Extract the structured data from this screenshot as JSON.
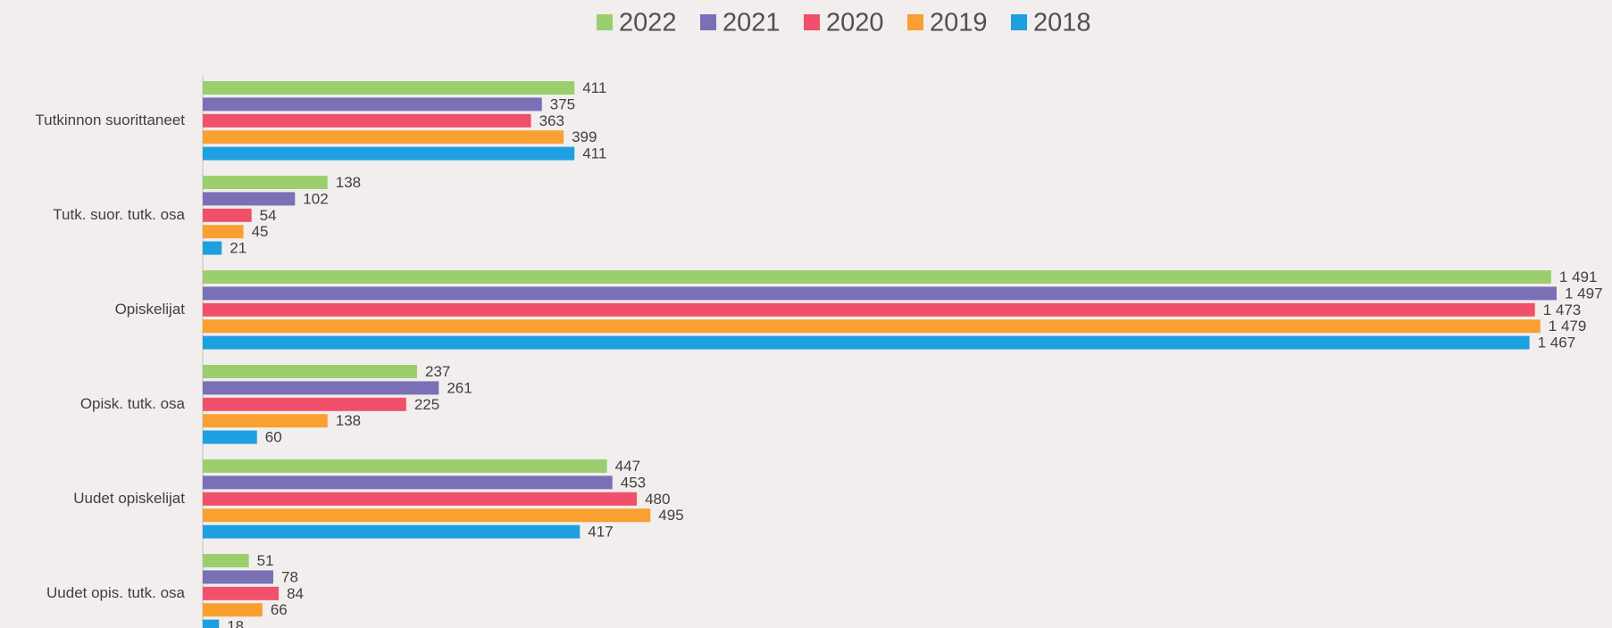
{
  "chart_data": {
    "type": "barh",
    "categories": [
      "Tutkinnon suorittaneet",
      "Tutk. suor. tutk. osa",
      "Opiskelijat",
      "Opisk. tutk. osa",
      "Uudet opiskelijat",
      "Uudet opis. tutk. osa"
    ],
    "series": [
      {
        "name": "2022",
        "color": "#9bcf6e",
        "values": [
          411,
          138,
          1491,
          237,
          447,
          51
        ],
        "value_labels": [
          "411",
          "138",
          "1 491",
          "237",
          "447",
          "51"
        ]
      },
      {
        "name": "2021",
        "color": "#7a70b5",
        "values": [
          375,
          102,
          1497,
          261,
          453,
          78
        ],
        "value_labels": [
          "375",
          "102",
          "1 497",
          "261",
          "453",
          "78"
        ]
      },
      {
        "name": "2020",
        "color": "#f0506a",
        "values": [
          363,
          54,
          1473,
          225,
          480,
          84
        ],
        "value_labels": [
          "363",
          "54",
          "1 473",
          "225",
          "480",
          "84"
        ]
      },
      {
        "name": "2019",
        "color": "#f9a030",
        "values": [
          399,
          45,
          1479,
          138,
          495,
          66
        ],
        "value_labels": [
          "399",
          "45",
          "1 479",
          "138",
          "495",
          "66"
        ]
      },
      {
        "name": "2018",
        "color": "#1e9fe0",
        "values": [
          411,
          21,
          1467,
          60,
          417,
          18
        ],
        "value_labels": [
          "411",
          "21",
          "1 467",
          "60",
          "417",
          "18"
        ]
      }
    ],
    "legend": "top"
  }
}
